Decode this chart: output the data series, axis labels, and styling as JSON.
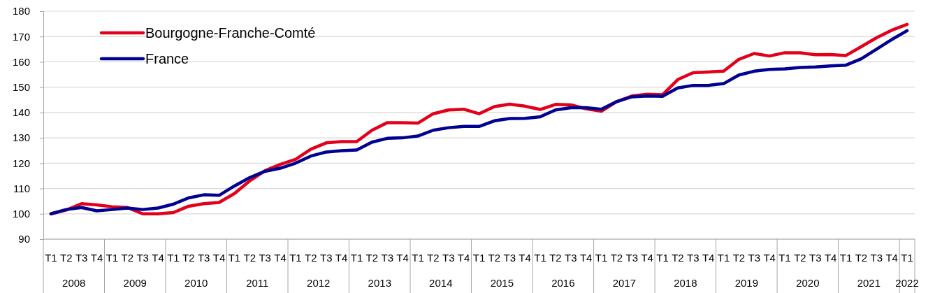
{
  "chart_data": {
    "type": "line",
    "categories": [
      "T1",
      "T2",
      "T3",
      "T4",
      "T1",
      "T2",
      "T3",
      "T4",
      "T1",
      "T2",
      "T3",
      "T4",
      "T1",
      "T2",
      "T3",
      "T4",
      "T1",
      "T2",
      "T3",
      "T4",
      "T1",
      "T2",
      "T3",
      "T4",
      "T1",
      "T2",
      "T3",
      "T4",
      "T1",
      "T2",
      "T3",
      "T4",
      "T1",
      "T2",
      "T3",
      "T4",
      "T1",
      "T2",
      "T3",
      "T4",
      "T1",
      "T2",
      "T3",
      "T4",
      "T1",
      "T2",
      "T3",
      "T4",
      "T1",
      "T2",
      "T3",
      "T4",
      "T1",
      "T2",
      "T3",
      "T4",
      "T1"
    ],
    "series": [
      {
        "name": "Bourgogne-Franche-Comté",
        "color": "#e2001a",
        "values": [
          100,
          101.5,
          104,
          103.5,
          102.8,
          102.5,
          100,
          100,
          100.5,
          103,
          104,
          104.5,
          108,
          113,
          117,
          119.5,
          121.5,
          125.5,
          128,
          128.5,
          128.5,
          133,
          136,
          136,
          135.8,
          139.5,
          141,
          141.3,
          139.5,
          142.3,
          143.3,
          142.5,
          141.2,
          143.2,
          143,
          141.5,
          140.5,
          144.3,
          146.5,
          147.2,
          147,
          153,
          155.7,
          156,
          156.3,
          161,
          163.3,
          162.3,
          163.6,
          163.6,
          162.8,
          162.9,
          162.5,
          166,
          169.5,
          172.5,
          174.8
        ]
      },
      {
        "name": "France",
        "color": "#000091",
        "values": [
          100,
          101.7,
          102.5,
          101.2,
          101.7,
          102.3,
          101.7,
          102.3,
          103.8,
          106.3,
          107.5,
          107.3,
          111,
          114.3,
          116.8,
          118,
          120,
          122.8,
          124.4,
          124.9,
          125.2,
          128.3,
          129.8,
          130,
          130.7,
          133,
          134,
          134.5,
          134.5,
          136.7,
          137.6,
          137.7,
          138.3,
          141,
          141.9,
          141.9,
          141.3,
          144.3,
          146.2,
          146.5,
          146.4,
          149.7,
          150.7,
          150.7,
          151.4,
          154.8,
          156.3,
          157,
          157.2,
          157.8,
          158,
          158.4,
          158.7,
          161.2,
          165,
          168.8,
          172.3
        ]
      }
    ],
    "annotations": [
      "2008",
      "2009",
      "2010",
      "2011",
      "2012",
      "2013",
      "2014",
      "2015",
      "2016",
      "2017",
      "2018",
      "2019",
      "2020",
      "2021",
      "2022"
    ],
    "ylim": [
      90,
      180
    ],
    "yticks": [
      90,
      100,
      110,
      120,
      130,
      140,
      150,
      160,
      170,
      180
    ],
    "grid": "y",
    "legend": "top left",
    "marker": "none",
    "line_style": "solid"
  }
}
